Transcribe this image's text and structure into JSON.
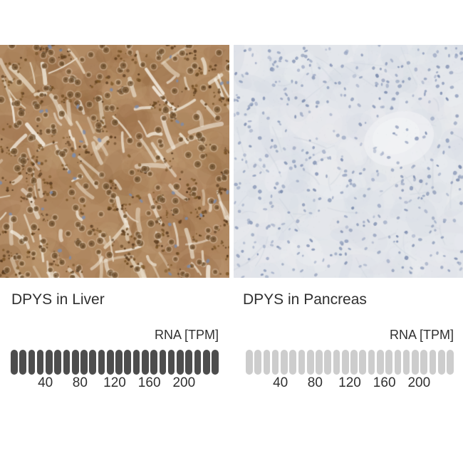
{
  "figure": {
    "background": "#ffffff",
    "text_color": "#303030",
    "panels": [
      {
        "tissue": "liver",
        "title": "DPYS in Liver",
        "rna_unit_label": "RNA [TPM]",
        "micrograph": {
          "kind": "immunohistochemistry-micrograph",
          "dominant_colors": [
            "#b18a63",
            "#f1e9db",
            "#60401f",
            "#7a5c3a",
            "#7c8cad"
          ]
        },
        "gauge": {
          "pill_count": 24,
          "filled_pills": 24,
          "filled_color": "#4d4d4d",
          "empty_color": "#cdcdcd",
          "tick_labels": [
            "40",
            "80",
            "120",
            "160",
            "200"
          ],
          "max_tpm": 240
        }
      },
      {
        "tissue": "pancreas",
        "title": "DPYS in Pancreas",
        "rna_unit_label": "RNA [TPM]",
        "micrograph": {
          "kind": "immunohistochemistry-micrograph",
          "dominant_colors": [
            "#e3e6eb",
            "#8594b4",
            "#eceff2"
          ]
        },
        "gauge": {
          "pill_count": 24,
          "filled_pills": 0,
          "filled_color": "#4d4d4d",
          "empty_color": "#cdcdcd",
          "tick_labels": [
            "40",
            "80",
            "120",
            "160",
            "200"
          ],
          "max_tpm": 240
        }
      }
    ]
  },
  "chart_data": [
    {
      "type": "bar",
      "title": "DPYS in Liver",
      "ylabel": "RNA [TPM]",
      "ticks": [
        40,
        80,
        120,
        160,
        200
      ],
      "axis_range": [
        0,
        240
      ],
      "pill_count": 24,
      "filled_pills": 24
    },
    {
      "type": "bar",
      "title": "DPYS in Pancreas",
      "ylabel": "RNA [TPM]",
      "ticks": [
        40,
        80,
        120,
        160,
        200
      ],
      "axis_range": [
        0,
        240
      ],
      "pill_count": 24,
      "filled_pills": 0
    }
  ]
}
